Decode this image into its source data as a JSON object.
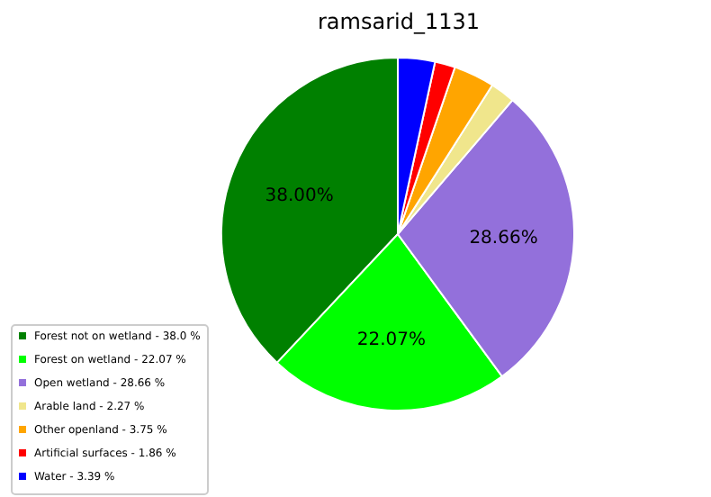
{
  "chart_data": {
    "type": "pie",
    "title": "ramsarid_1131",
    "categories": [
      "Forest not on wetland - 38.0 %",
      "Forest on wetland - 22.07 %",
      "Open wetland - 28.66 %",
      "Arable land - 2.27 %",
      "Other openland - 3.75 %",
      "Artificial surfaces - 1.86 %",
      "Water - 3.39 %"
    ],
    "values": [
      38.0,
      22.07,
      28.66,
      2.27,
      3.75,
      1.86,
      3.39
    ],
    "colors": [
      "#008000",
      "#00ff00",
      "#9370db",
      "#f0e68c",
      "#ffa500",
      "#ff0000",
      "#0000ff"
    ],
    "value_labels": [
      "38.00%",
      "22.07%",
      "28.66%",
      null,
      null,
      null,
      null
    ],
    "legend": "bottom left"
  }
}
